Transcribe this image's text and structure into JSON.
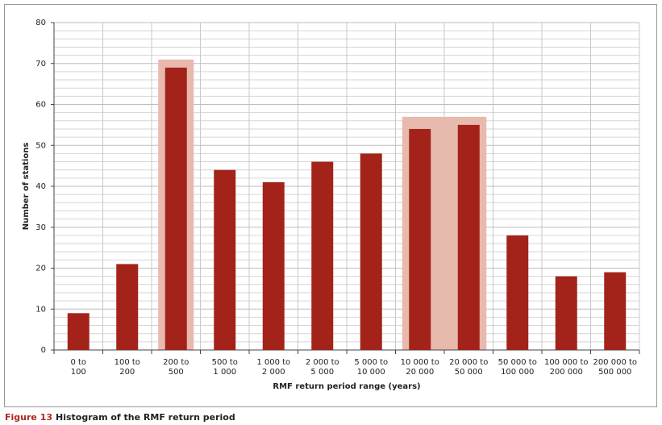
{
  "chart_data": {
    "type": "bar",
    "ylabel": "Number of stations",
    "xlabel": "RMF return period range (years)",
    "categories": [
      [
        "0 to",
        "100"
      ],
      [
        "100 to",
        "200"
      ],
      [
        "200 to",
        "500"
      ],
      [
        "500 to",
        "1 000"
      ],
      [
        "1 000 to",
        "2 000"
      ],
      [
        "2 000 to",
        "5 000"
      ],
      [
        "5 000 to",
        "10 000"
      ],
      [
        "10 000 to",
        "20 000"
      ],
      [
        "20 000 to",
        "50 000"
      ],
      [
        "50 000 to",
        "100 000"
      ],
      [
        "100 000 to",
        "200 000"
      ],
      [
        "200 000 to",
        "500 000"
      ]
    ],
    "values": [
      9,
      21,
      69,
      44,
      41,
      46,
      48,
      54,
      55,
      28,
      18,
      19
    ],
    "color": "#a3231a",
    "ylim": [
      0,
      80
    ],
    "yticks": [
      0,
      10,
      20,
      30,
      40,
      50,
      60,
      70,
      80
    ],
    "grid": true
  },
  "caption": {
    "label": "Figure 13",
    "text": "Histogram of the RMF return period"
  }
}
